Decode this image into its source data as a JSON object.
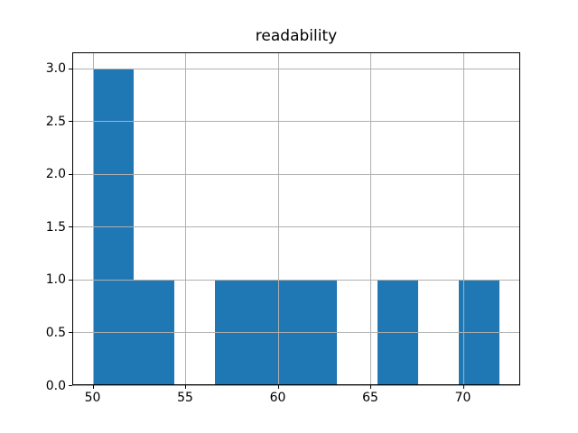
{
  "figure": {
    "title": "readability"
  },
  "chart_data": {
    "type": "bar",
    "chart_kind": "histogram",
    "title": "readability",
    "xlabel": "",
    "ylabel": "",
    "bin_edges": [
      50.0,
      52.2,
      54.4,
      56.6,
      58.8,
      61.0,
      63.2,
      65.4,
      67.6,
      69.8,
      72.0
    ],
    "counts": [
      3,
      1,
      0,
      1,
      1,
      1,
      0,
      1,
      0,
      1
    ],
    "xlim": [
      48.9,
      73.1
    ],
    "ylim": [
      0,
      3.15
    ],
    "x_ticks": [
      50,
      55,
      60,
      65,
      70
    ],
    "x_tick_labels": [
      "50",
      "55",
      "60",
      "65",
      "70"
    ],
    "y_ticks": [
      0,
      0.5,
      1,
      1.5,
      2,
      2.5,
      3
    ],
    "y_tick_labels": [
      "0.0",
      "0.5",
      "1.0",
      "1.5",
      "2.0",
      "2.5",
      "3.0"
    ],
    "grid": true,
    "legend": false,
    "colors": {
      "bar": "#1f77b4",
      "grid": "#b0b0b0",
      "spine": "#000000",
      "text": "#000000",
      "background": "#ffffff"
    }
  }
}
